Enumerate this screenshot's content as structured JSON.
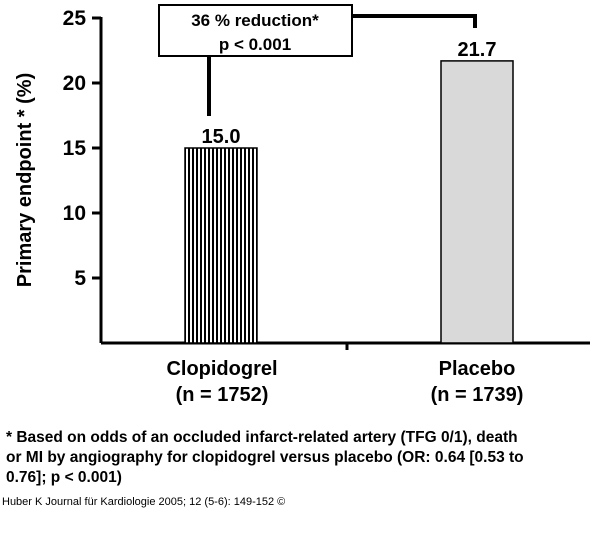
{
  "chart_data": {
    "type": "bar",
    "categories": [
      "Clopidogrel",
      "Placebo"
    ],
    "category_sublabels": [
      "(n = 1752)",
      "(n = 1739)"
    ],
    "values": [
      15.0,
      21.7
    ],
    "value_labels": [
      "15.0",
      "21.7"
    ],
    "ylabel": "Primary endpoint * (%)",
    "ylim": [
      0,
      25
    ],
    "yticks": [
      "5",
      "10",
      "15",
      "20",
      "25"
    ],
    "grid": false,
    "bar_fills": [
      "vertical-hatch",
      "#d9d9d9"
    ],
    "annotation": {
      "line1": "36 % reduction*",
      "line2": "p < 0.001"
    }
  },
  "footnote": {
    "line1": "* Based on odds of an occluded infarct-related artery (TFG 0/1), death",
    "line2": "or MI by angiography for clopidogrel versus placebo (OR: 0.64 [0.53 to",
    "line3": "0.76]; p < 0.001)"
  },
  "citation": "Huber K Journal für Kardiologie 2005; 12 (5-6): 149-152 ©"
}
